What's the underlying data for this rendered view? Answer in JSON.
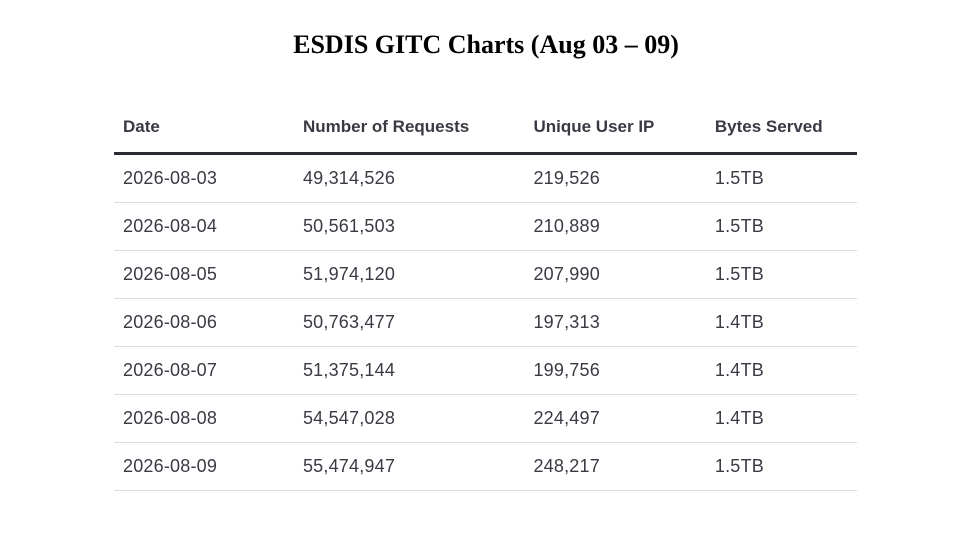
{
  "title": "ESDIS GITC Charts (Aug 03 – 09)",
  "chart_data": {
    "type": "table",
    "title": "ESDIS GITC Charts (Aug 03 – 09)",
    "columns": [
      "Date",
      "Number of Requests",
      "Unique User IP",
      "Bytes Served"
    ],
    "rows": [
      [
        "2026-08-03",
        "49,314,526",
        "219,526",
        "1.5TB"
      ],
      [
        "2026-08-04",
        "50,561,503",
        "210,889",
        "1.5TB"
      ],
      [
        "2026-08-05",
        "51,974,120",
        "207,990",
        "1.5TB"
      ],
      [
        "2026-08-06",
        "50,763,477",
        "197,313",
        "1.4TB"
      ],
      [
        "2026-08-07",
        "51,375,144",
        "199,756",
        "1.4TB"
      ],
      [
        "2026-08-08",
        "54,547,028",
        "224,497",
        "1.4TB"
      ],
      [
        "2026-08-09",
        "55,474,947",
        "248,217",
        "1.5TB"
      ]
    ]
  }
}
